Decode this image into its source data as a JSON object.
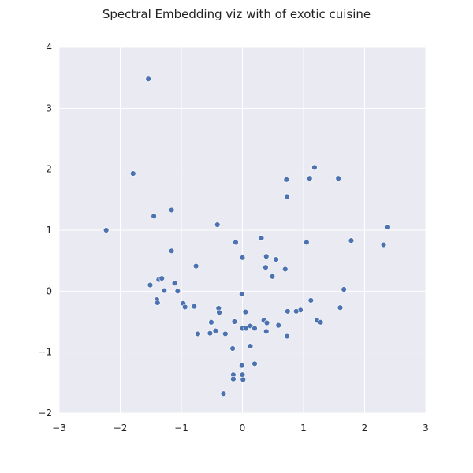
{
  "chart_data": {
    "type": "scatter",
    "title": "Spectral Embedding viz with of exotic cuisine",
    "xlabel": "",
    "ylabel": "",
    "xlim": [
      -3,
      3
    ],
    "ylim": [
      -2,
      4
    ],
    "x_ticks": [
      -3,
      -2,
      -1,
      0,
      1,
      2,
      3
    ],
    "y_ticks": [
      -2,
      -1,
      0,
      1,
      2,
      3,
      4
    ],
    "x_tick_labels": [
      "−3",
      "−2",
      "−1",
      "0",
      "1",
      "2",
      "3"
    ],
    "y_tick_labels": [
      "−2",
      "−1",
      "0",
      "1",
      "2",
      "3",
      "4"
    ],
    "grid": true,
    "colors": {
      "plot_background": "#eaeaf2",
      "grid": "#ffffff",
      "marker": "#4c72b0",
      "marker_edge": "#ffffff"
    },
    "points": [
      [
        -1.54,
        3.48
      ],
      [
        -1.79,
        1.93
      ],
      [
        -1.45,
        1.23
      ],
      [
        -1.16,
        1.33
      ],
      [
        -2.23,
        1.0
      ],
      [
        -1.16,
        0.66
      ],
      [
        -0.41,
        1.09
      ],
      [
        -0.76,
        0.41
      ],
      [
        -0.11,
        0.8
      ],
      [
        0.31,
        0.87
      ],
      [
        0.0,
        0.55
      ],
      [
        0.39,
        0.57
      ],
      [
        0.55,
        0.52
      ],
      [
        0.38,
        0.39
      ],
      [
        0.7,
        0.36
      ],
      [
        0.49,
        0.24
      ],
      [
        0.72,
        1.83
      ],
      [
        0.73,
        1.55
      ],
      [
        1.1,
        1.85
      ],
      [
        1.18,
        2.03
      ],
      [
        1.57,
        1.85
      ],
      [
        1.05,
        0.8
      ],
      [
        1.78,
        0.83
      ],
      [
        2.31,
        0.76
      ],
      [
        2.38,
        1.05
      ],
      [
        1.66,
        0.03
      ],
      [
        1.12,
        -0.15
      ],
      [
        1.6,
        -0.27
      ],
      [
        0.95,
        -0.31
      ],
      [
        0.88,
        -0.33
      ],
      [
        0.74,
        -0.33
      ],
      [
        1.22,
        -0.48
      ],
      [
        1.28,
        -0.51
      ],
      [
        0.59,
        -0.56
      ],
      [
        0.73,
        -0.74
      ],
      [
        -1.51,
        0.1
      ],
      [
        -1.37,
        0.19
      ],
      [
        -1.32,
        0.21
      ],
      [
        -1.11,
        0.13
      ],
      [
        -1.28,
        0.01
      ],
      [
        -1.06,
        0.0
      ],
      [
        -1.4,
        -0.14
      ],
      [
        -1.39,
        -0.19
      ],
      [
        -0.97,
        -0.2
      ],
      [
        -0.94,
        -0.26
      ],
      [
        -0.79,
        -0.25
      ],
      [
        -0.39,
        -0.28
      ],
      [
        -0.38,
        -0.35
      ],
      [
        -0.01,
        -0.05
      ],
      [
        0.05,
        -0.34
      ],
      [
        -0.51,
        -0.51
      ],
      [
        -0.13,
        -0.5
      ],
      [
        -0.44,
        -0.65
      ],
      [
        -0.53,
        -0.69
      ],
      [
        -0.73,
        -0.7
      ],
      [
        -0.28,
        -0.7
      ],
      [
        0.0,
        -0.61
      ],
      [
        0.06,
        -0.61
      ],
      [
        0.13,
        -0.57
      ],
      [
        0.2,
        -0.61
      ],
      [
        0.35,
        -0.48
      ],
      [
        0.4,
        -0.52
      ],
      [
        0.39,
        -0.66
      ],
      [
        -0.16,
        -0.94
      ],
      [
        0.13,
        -0.9
      ],
      [
        0.2,
        -1.19
      ],
      [
        -0.01,
        -1.22
      ],
      [
        -0.15,
        -1.37
      ],
      [
        0.0,
        -1.37
      ],
      [
        -0.15,
        -1.44
      ],
      [
        0.01,
        -1.45
      ],
      [
        -0.31,
        -1.68
      ]
    ]
  }
}
